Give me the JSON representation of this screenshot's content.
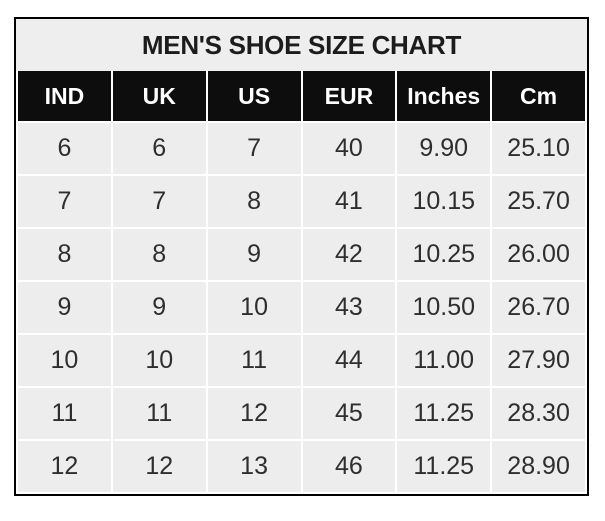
{
  "title": "MEN'S SHOE SIZE CHART",
  "colors": {
    "page-bg": "#ffffff",
    "title-bg": "#eeeeee",
    "title-text": "#1c1c1c",
    "header-bg": "#0d0d0d",
    "header-text": "#ffffff",
    "cell-bg": "#ededed",
    "cell-text": "#2e2e2e",
    "border": "#000000",
    "gridline": "#ffffff"
  },
  "chart_data": {
    "type": "table",
    "title": "MEN'S SHOE SIZE CHART",
    "columns": [
      "IND",
      "UK",
      "US",
      "EUR",
      "Inches",
      "Cm"
    ],
    "rows": [
      [
        "6",
        "6",
        "7",
        "40",
        "9.90",
        "25.10"
      ],
      [
        "7",
        "7",
        "8",
        "41",
        "10.15",
        "25.70"
      ],
      [
        "8",
        "8",
        "9",
        "42",
        "10.25",
        "26.00"
      ],
      [
        "9",
        "9",
        "10",
        "43",
        "10.50",
        "26.70"
      ],
      [
        "10",
        "10",
        "11",
        "44",
        "11.00",
        "27.90"
      ],
      [
        "11",
        "11",
        "12",
        "45",
        "11.25",
        "28.30"
      ],
      [
        "12",
        "12",
        "13",
        "46",
        "11.25",
        "28.90"
      ]
    ],
    "layout": {
      "header_position": "top",
      "grid": true
    }
  }
}
